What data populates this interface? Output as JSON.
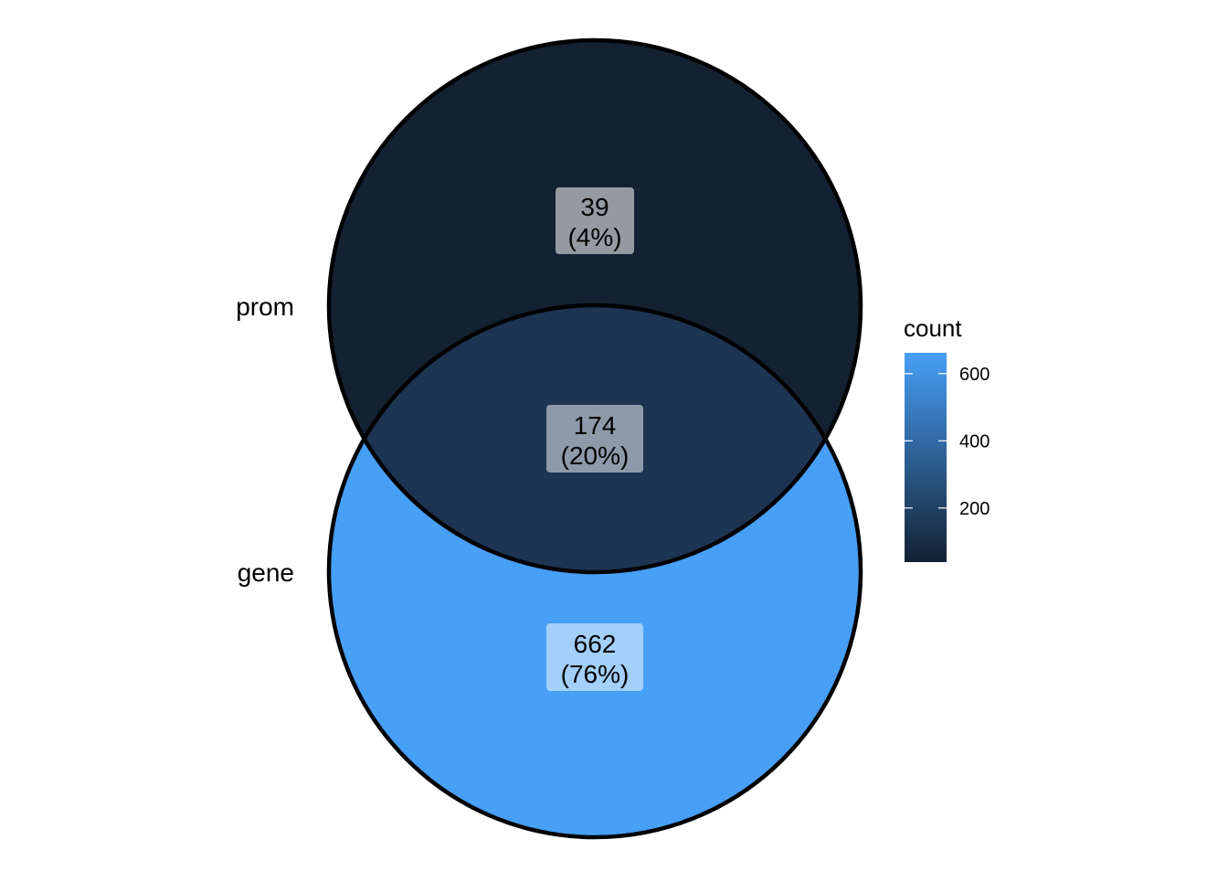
{
  "chart_data": {
    "type": "venn",
    "sets": [
      {
        "name": "prom",
        "only_count": 39,
        "only_percent": "(4%)"
      },
      {
        "name": "gene",
        "only_count": 662,
        "only_percent": "(76%)"
      }
    ],
    "intersection": {
      "sets": [
        "prom",
        "gene"
      ],
      "count": 174,
      "percent": "(20%)"
    },
    "labels": {
      "prom_only": {
        "count": "39",
        "percent": "(4%)"
      },
      "both": {
        "count": "174",
        "percent": "(20%)"
      },
      "gene_only": {
        "count": "662",
        "percent": "(76%)"
      }
    },
    "legend": {
      "title": "count",
      "ticks": [
        200,
        400,
        600
      ],
      "tick_labels": [
        "200",
        "400",
        "600"
      ],
      "range": [
        39,
        662
      ],
      "color_low": "#132132",
      "color_high": "#479ff6",
      "placement": "right"
    },
    "fills": {
      "prom_only": "#132132",
      "both": "#1d3452",
      "gene_only": "#479ff6"
    }
  }
}
